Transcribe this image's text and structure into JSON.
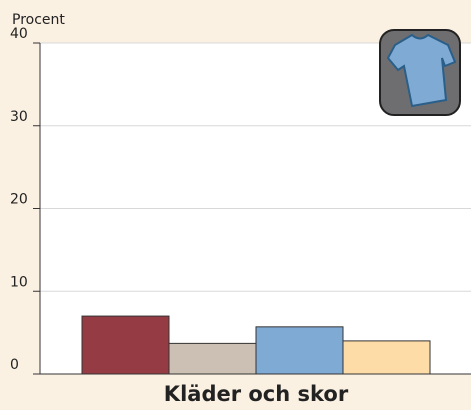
{
  "chart_data": {
    "type": "bar",
    "y_label": "Procent",
    "categories": [
      "Kläder och skor"
    ],
    "series": [
      {
        "color": "#943b43",
        "values": [
          7.0
        ]
      },
      {
        "color": "#cbc0b3",
        "values": [
          3.7
        ]
      },
      {
        "color": "#7faad3",
        "values": [
          5.7
        ]
      },
      {
        "color": "#fddca7",
        "values": [
          4.0
        ]
      }
    ],
    "ylim": [
      0,
      40
    ],
    "yticks": [
      0,
      10,
      20,
      30,
      40
    ],
    "grid": true
  }
}
